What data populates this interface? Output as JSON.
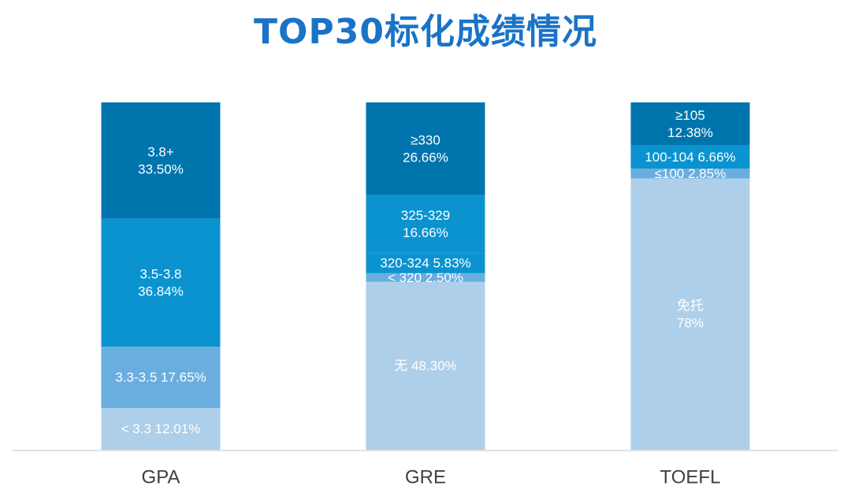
{
  "title": "TOP30标化成绩情况",
  "colors": {
    "title": "#1a73c7",
    "baseline": "#d9d9d9",
    "shades": [
      "#aecfe9",
      "#6aaee0",
      "#0b93cf",
      "#0075ad"
    ],
    "label": "#ffffff",
    "category": "#404040"
  },
  "chart_data": {
    "type": "bar",
    "stacked": true,
    "normalized": true,
    "categories": [
      "GPA",
      "GRE",
      "TOEFL"
    ],
    "ylim": [
      0,
      100
    ],
    "grid": false,
    "stacks": [
      {
        "category": "GPA",
        "segments": [
          {
            "value": 12.01,
            "lines": [
              "< 3.3 12.01%"
            ],
            "shade": 0
          },
          {
            "value": 17.65,
            "lines": [
              "3.3-3.5 17.65%"
            ],
            "shade": 1
          },
          {
            "value": 36.84,
            "lines": [
              "3.5-3.8",
              "36.84%"
            ],
            "shade": 2
          },
          {
            "value": 33.5,
            "lines": [
              "3.8+",
              "33.50%"
            ],
            "shade": 3
          }
        ]
      },
      {
        "category": "GRE",
        "segments": [
          {
            "value": 48.3,
            "lines": [
              "无 48.30%"
            ],
            "shade": 0
          },
          {
            "value": 2.5,
            "lines": [
              "< 320 2.50%"
            ],
            "shade": 1
          },
          {
            "value": 5.83,
            "lines": [
              "320-324 5.83%"
            ],
            "shade": 2
          },
          {
            "value": 16.66,
            "lines": [
              "325-329",
              "16.66%"
            ],
            "shade": 2
          },
          {
            "value": 26.66,
            "lines": [
              "≥330",
              "26.66%"
            ],
            "shade": 3
          }
        ]
      },
      {
        "category": "TOEFL",
        "segments": [
          {
            "value": 78,
            "lines": [
              "免托",
              "78%"
            ],
            "shade": 0
          },
          {
            "value": 2.85,
            "lines": [
              "≤100 2.85%"
            ],
            "shade": 1
          },
          {
            "value": 6.66,
            "lines": [
              "100-104 6.66%"
            ],
            "shade": 2
          },
          {
            "value": 12.38,
            "lines": [
              "≥105",
              "12.38%"
            ],
            "shade": 3
          }
        ]
      }
    ]
  }
}
